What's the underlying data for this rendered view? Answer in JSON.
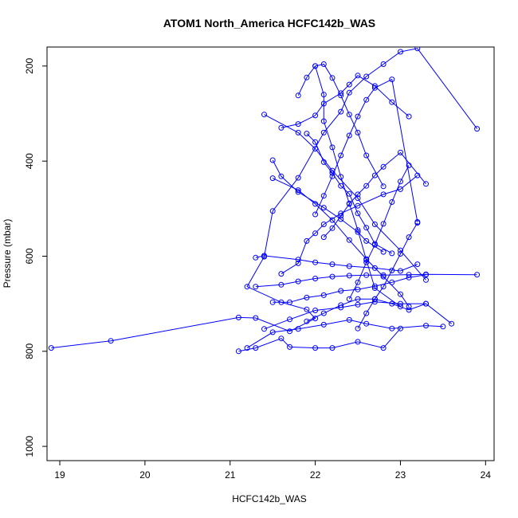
{
  "chart_data": {
    "type": "line",
    "title": "ATOM1 North_America HCFC142b_WAS",
    "xlabel": "HCFC142b_WAS",
    "ylabel": "Pressure (mbar)",
    "xlim": [
      18.85,
      24.1
    ],
    "ylim": [
      1030,
      160
    ],
    "y_reversed": true,
    "x_ticks": [
      19,
      20,
      21,
      22,
      23,
      24
    ],
    "y_ticks": [
      200,
      400,
      600,
      800,
      1000
    ],
    "grid": false,
    "legend": "none",
    "colors": {
      "series": "#0000ff"
    },
    "series": [
      {
        "x": [
          18.9,
          19.6,
          21.1,
          21.3,
          21.7,
          22.0,
          21.9,
          21.6,
          21.2,
          21.4,
          21.5,
          21.8,
          22.1,
          22.3,
          22.4,
          22.6,
          22.8,
          23.0,
          23.2,
          23.9
        ],
        "y": [
          793,
          778,
          729,
          730,
          758,
          731,
          712,
          697,
          664,
          601,
          505,
          435,
          340,
          296,
          256,
          222,
          196,
          170,
          163,
          332
        ]
      },
      {
        "x": [
          21.1,
          21.3,
          21.6,
          21.7,
          22.0,
          22.2,
          22.5,
          22.8,
          23.0
        ],
        "y": [
          800,
          793,
          773,
          791,
          793,
          793,
          780,
          793,
          752
        ]
      },
      {
        "x": [
          21.2,
          21.5,
          21.8,
          22.1,
          22.4,
          22.6,
          22.9,
          23.3,
          23.5
        ],
        "y": [
          793,
          760,
          753,
          744,
          734,
          742,
          752,
          746,
          748
        ]
      },
      {
        "x": [
          21.4,
          21.7,
          22.0,
          22.3,
          22.5,
          22.7,
          23.0,
          23.3,
          23.6
        ],
        "y": [
          753,
          733,
          714,
          708,
          702,
          696,
          700,
          700,
          742
        ]
      },
      {
        "x": [
          21.5,
          21.7,
          21.9,
          22.1,
          22.3,
          22.5,
          22.7,
          22.9,
          23.1,
          23.3
        ],
        "y": [
          697,
          697,
          687,
          682,
          673,
          670,
          663,
          655,
          645,
          639
        ]
      },
      {
        "x": [
          21.3,
          21.6,
          21.8,
          22.0,
          22.2,
          22.4,
          22.6,
          22.8,
          23.1,
          23.3,
          23.9
        ],
        "y": [
          664,
          660,
          653,
          647,
          643,
          641,
          640,
          640,
          639,
          638,
          639
        ]
      },
      {
        "x": [
          21.3,
          21.4,
          21.8,
          22.0,
          22.2,
          22.4,
          22.7,
          23.0,
          23.2
        ],
        "y": [
          603,
          599,
          607,
          613,
          617,
          621,
          625,
          631,
          617
        ]
      },
      {
        "x": [
          21.6,
          21.8,
          21.9,
          22.0,
          22.1,
          22.3,
          22.5,
          22.8,
          23.0,
          23.2
        ],
        "y": [
          637,
          615,
          568,
          552,
          533,
          510,
          494,
          470,
          459,
          430
        ]
      },
      {
        "x": [
          21.5,
          21.6,
          21.8,
          22.1,
          22.3,
          22.5,
          22.6,
          22.8
        ],
        "y": [
          398,
          432,
          465,
          498,
          522,
          549,
          568,
          591
        ]
      },
      {
        "x": [
          21.5,
          21.8,
          22.0,
          22.2,
          22.4,
          22.6,
          22.8,
          23.0,
          23.1
        ],
        "y": [
          436,
          461,
          490,
          524,
          566,
          606,
          643,
          680,
          706
        ]
      },
      {
        "x": [
          21.4,
          21.8,
          22.0,
          22.2,
          22.5,
          22.7,
          23.0,
          23.3
        ],
        "y": [
          302,
          340,
          374,
          420,
          478,
          533,
          588,
          650
        ]
      },
      {
        "x": [
          21.6,
          21.8,
          22.0,
          22.1,
          22.3,
          22.4,
          22.5,
          22.7,
          22.9,
          23.1
        ],
        "y": [
          330,
          322,
          304,
          279,
          257,
          239,
          220,
          242,
          276,
          306
        ]
      },
      {
        "x": [
          21.8,
          21.9,
          22.0,
          22.1,
          22.2,
          22.3,
          22.4,
          22.5,
          22.6,
          22.8
        ],
        "y": [
          262,
          224,
          200,
          196,
          225,
          262,
          302,
          340,
          388,
          453
        ]
      },
      {
        "x": [
          22.0,
          22.1,
          22.1,
          22.2,
          22.3,
          22.4,
          22.5,
          22.6,
          22.7,
          23.0
        ],
        "y": [
          200,
          260,
          316,
          371,
          433,
          489,
          545,
          608,
          667,
          706
        ]
      },
      {
        "x": [
          21.9,
          22.0,
          22.1,
          22.2,
          22.3,
          22.4,
          22.5,
          22.6,
          22.7,
          22.9
        ],
        "y": [
          342,
          360,
          402,
          425,
          452,
          469,
          510,
          540,
          574,
          594
        ]
      },
      {
        "x": [
          22.0,
          22.1,
          22.2,
          22.3,
          22.4,
          22.5,
          22.6,
          22.7,
          22.9,
          23.2
        ],
        "y": [
          512,
          473,
          432,
          388,
          346,
          306,
          271,
          246,
          228,
          528
        ]
      },
      {
        "x": [
          22.1,
          22.2,
          22.3,
          22.4,
          22.5,
          22.6,
          22.7,
          22.8,
          23.0,
          23.3
        ],
        "y": [
          560,
          541,
          515,
          490,
          470,
          452,
          430,
          412,
          382,
          448
        ]
      },
      {
        "x": [
          22.4,
          22.5,
          22.6,
          22.7,
          22.8,
          22.9,
          23.0,
          23.1
        ],
        "y": [
          690,
          655,
          613,
          576,
          532,
          486,
          443,
          409
        ]
      },
      {
        "x": [
          22.5,
          22.6,
          22.7,
          22.8,
          22.9,
          23.0,
          23.1,
          23.2
        ],
        "y": [
          752,
          720,
          690,
          664,
          630,
          595,
          560,
          530
        ]
      },
      {
        "x": [
          21.9,
          22.1,
          22.3,
          22.5,
          22.7,
          22.9,
          23.1,
          23.3
        ],
        "y": [
          737,
          720,
          703,
          690,
          690,
          700,
          713,
          700
        ]
      }
    ]
  }
}
